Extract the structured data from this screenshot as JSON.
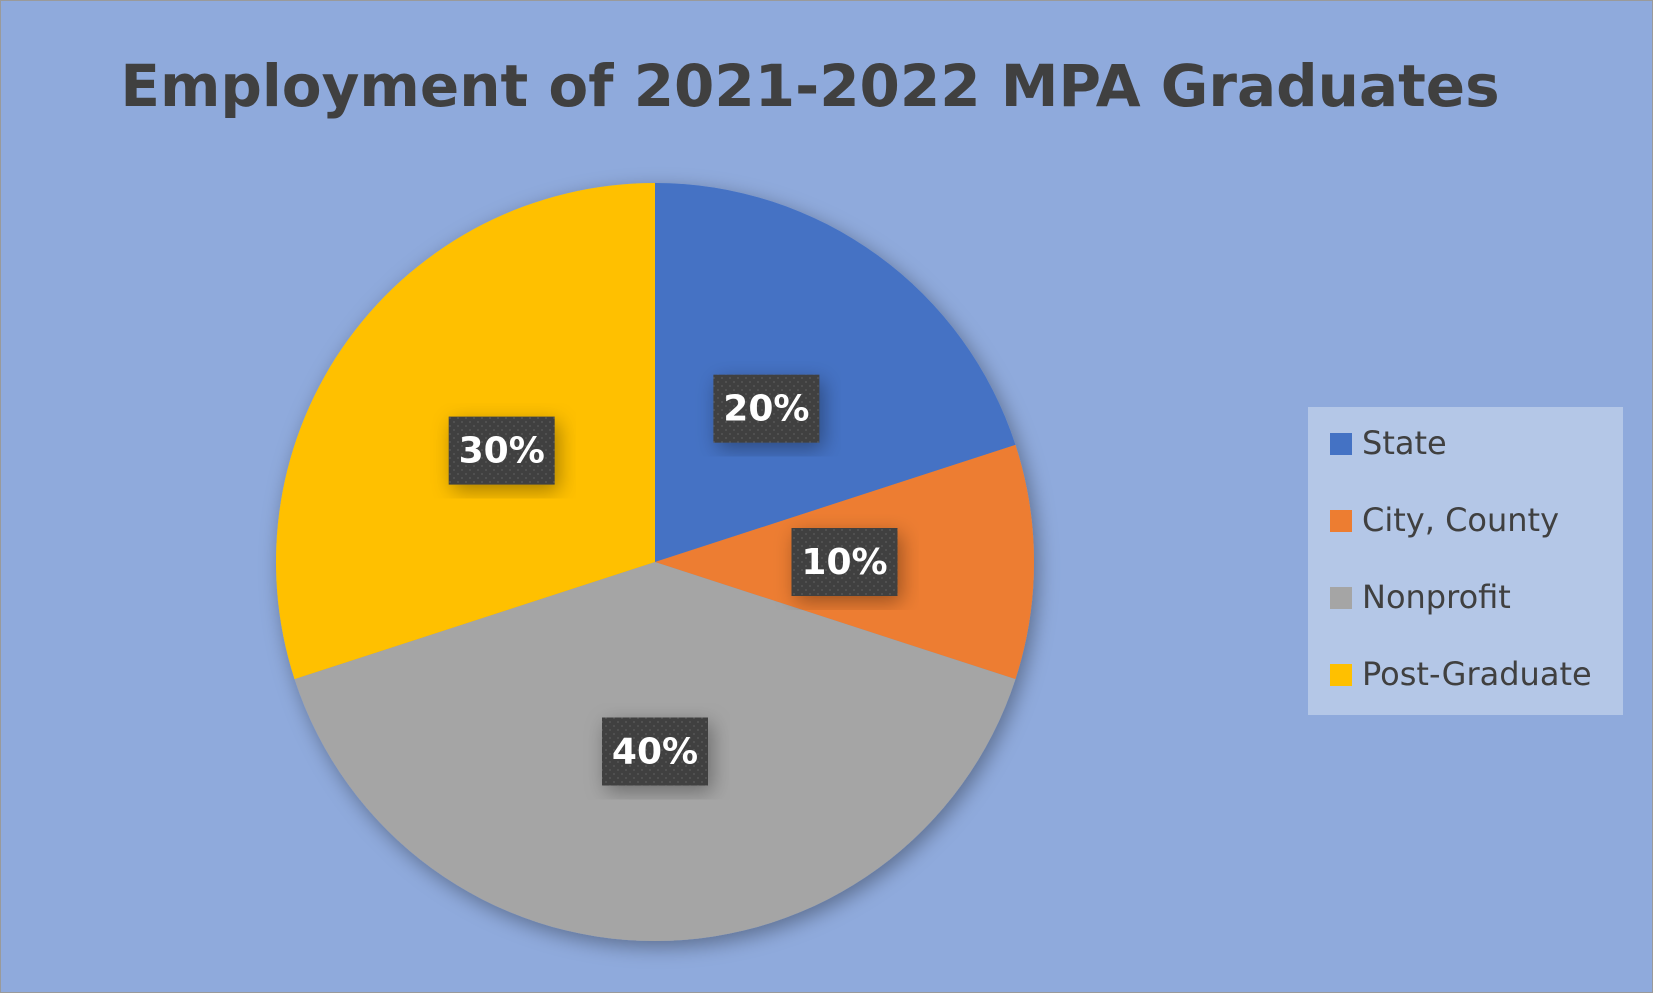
{
  "chart_data": {
    "type": "pie",
    "title": "Employment of 2021-2022 MPA Graduates",
    "categories": [
      "State",
      "City, County",
      "Nonprofit",
      "Post-Graduate"
    ],
    "values": [
      20,
      10,
      40,
      30
    ],
    "value_labels": [
      "20%",
      "10%",
      "40%",
      "30%"
    ],
    "colors": [
      "#4472c4",
      "#ed7d31",
      "#a5a5a5",
      "#ffc000"
    ],
    "legend": "right"
  }
}
